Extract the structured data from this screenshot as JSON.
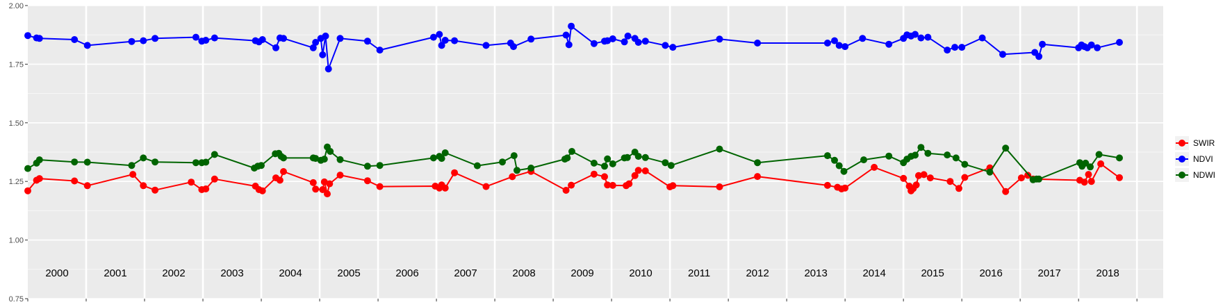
{
  "chart_data": {
    "type": "line",
    "title": "",
    "xlabel": "",
    "ylabel": "",
    "ylim": [
      0.75,
      2.0
    ],
    "xlim": [
      1999.5,
      2018.95
    ],
    "grid": true,
    "legend_position": "right",
    "y_ticks": [
      "0.75",
      "1.00",
      "1.25",
      "1.50",
      "1.75",
      "2.00"
    ],
    "year_labels": [
      "2000",
      "2001",
      "2002",
      "2003",
      "2004",
      "2005",
      "2006",
      "2007",
      "2008",
      "2009",
      "2010",
      "2011",
      "2012",
      "2013",
      "2014",
      "2015",
      "2016",
      "2017",
      "2018"
    ],
    "legend": [
      "SWIR",
      "NDVI",
      "NDWI"
    ],
    "series": [
      {
        "name": "SWIR",
        "color": "#ff0000",
        "x": [
          1999.5,
          1999.65,
          1999.7,
          2000.3,
          2000.52,
          2001.3,
          2001.48,
          2001.68,
          2002.3,
          2002.48,
          2002.55,
          2002.7,
          2003.4,
          2003.46,
          2003.52,
          2003.75,
          2003.82,
          2003.88,
          2004.39,
          2004.43,
          2004.55,
          2004.58,
          2004.63,
          2004.67,
          2004.85,
          2005.32,
          2005.53,
          2006.48,
          2006.55,
          2006.59,
          2006.65,
          2006.81,
          2007.35,
          2007.8,
          2008.12,
          2008.72,
          2008.81,
          2009.2,
          2009.38,
          2009.43,
          2009.52,
          2009.75,
          2009.8,
          2009.9,
          2009.96,
          2010.08,
          2010.5,
          2010.55,
          2011.35,
          2012.0,
          2013.2,
          2013.37,
          2013.44,
          2013.5,
          2014.0,
          2014.5,
          2014.6,
          2014.63,
          2014.67,
          2014.72,
          2014.76,
          2014.85,
          2014.96,
          2015.3,
          2015.45,
          2015.55,
          2015.98,
          2016.25,
          2016.52,
          2016.63,
          2016.72,
          2017.52,
          2017.6,
          2017.67,
          2017.72,
          2017.88,
          2018.2
        ],
        "y": [
          1.21,
          1.255,
          1.262,
          1.252,
          1.232,
          1.28,
          1.232,
          1.213,
          1.247,
          1.215,
          1.218,
          1.26,
          1.23,
          1.215,
          1.21,
          1.265,
          1.255,
          1.292,
          1.245,
          1.217,
          1.215,
          1.248,
          1.197,
          1.24,
          1.277,
          1.253,
          1.228,
          1.23,
          1.222,
          1.235,
          1.222,
          1.287,
          1.228,
          1.27,
          1.293,
          1.212,
          1.234,
          1.281,
          1.27,
          1.235,
          1.233,
          1.232,
          1.24,
          1.275,
          1.297,
          1.295,
          1.227,
          1.232,
          1.227,
          1.271,
          1.233,
          1.225,
          1.218,
          1.222,
          1.31,
          1.263,
          1.23,
          1.21,
          1.22,
          1.235,
          1.275,
          1.279,
          1.265,
          1.25,
          1.22,
          1.267,
          1.308,
          1.207,
          1.265,
          1.276,
          1.26,
          1.255,
          1.247,
          1.28,
          1.25,
          1.325,
          1.266
        ]
      },
      {
        "name": "NDVI",
        "color": "#0000ff",
        "x": [
          1999.5,
          1999.65,
          1999.7,
          2000.3,
          2000.52,
          2001.28,
          2001.48,
          2001.68,
          2002.38,
          2002.48,
          2002.55,
          2002.7,
          2003.4,
          2003.46,
          2003.52,
          2003.75,
          2003.82,
          2003.88,
          2004.39,
          2004.43,
          2004.52,
          2004.55,
          2004.6,
          2004.65,
          2004.85,
          2005.32,
          2005.53,
          2006.45,
          2006.55,
          2006.59,
          2006.65,
          2006.81,
          2007.35,
          2007.77,
          2007.82,
          2008.12,
          2008.72,
          2008.77,
          2008.81,
          2009.2,
          2009.38,
          2009.43,
          2009.52,
          2009.72,
          2009.78,
          2009.9,
          2009.96,
          2010.08,
          2010.42,
          2010.55,
          2011.35,
          2012.0,
          2013.2,
          2013.32,
          2013.4,
          2013.5,
          2013.8,
          2014.25,
          2014.5,
          2014.56,
          2014.63,
          2014.7,
          2014.8,
          2014.92,
          2015.25,
          2015.38,
          2015.5,
          2015.85,
          2016.2,
          2016.75,
          2016.82,
          2016.88,
          2017.5,
          2017.55,
          2017.6,
          2017.65,
          2017.72,
          2017.82,
          2018.2
        ],
        "y": [
          1.872,
          1.862,
          1.86,
          1.855,
          1.83,
          1.847,
          1.85,
          1.86,
          1.865,
          1.848,
          1.852,
          1.862,
          1.85,
          1.845,
          1.855,
          1.82,
          1.862,
          1.86,
          1.82,
          1.843,
          1.86,
          1.79,
          1.87,
          1.73,
          1.86,
          1.848,
          1.81,
          1.865,
          1.877,
          1.83,
          1.852,
          1.85,
          1.83,
          1.84,
          1.825,
          1.857,
          1.874,
          1.833,
          1.912,
          1.838,
          1.848,
          1.85,
          1.858,
          1.845,
          1.87,
          1.86,
          1.843,
          1.848,
          1.83,
          1.822,
          1.857,
          1.84,
          1.84,
          1.85,
          1.83,
          1.825,
          1.86,
          1.835,
          1.86,
          1.875,
          1.87,
          1.877,
          1.862,
          1.865,
          1.81,
          1.822,
          1.822,
          1.862,
          1.792,
          1.8,
          1.783,
          1.835,
          1.82,
          1.832,
          1.825,
          1.82,
          1.832,
          1.82,
          1.843
        ]
      },
      {
        "name": "NDWI",
        "color": "#006400",
        "x": [
          1999.5,
          1999.65,
          1999.7,
          2000.3,
          2000.52,
          2001.28,
          2001.48,
          2001.68,
          2002.38,
          2002.48,
          2002.55,
          2002.7,
          2003.38,
          2003.44,
          2003.5,
          2003.74,
          2003.8,
          2003.84,
          2003.88,
          2004.39,
          2004.43,
          2004.52,
          2004.58,
          2004.63,
          2004.68,
          2004.85,
          2005.32,
          2005.53,
          2006.45,
          2006.55,
          2006.59,
          2006.65,
          2007.2,
          2007.63,
          2007.83,
          2007.88,
          2008.12,
          2008.7,
          2008.74,
          2008.82,
          2009.2,
          2009.38,
          2009.43,
          2009.52,
          2009.72,
          2009.77,
          2009.9,
          2009.96,
          2010.08,
          2010.42,
          2010.52,
          2011.35,
          2012.0,
          2013.2,
          2013.32,
          2013.4,
          2013.48,
          2013.82,
          2014.25,
          2014.5,
          2014.56,
          2014.63,
          2014.7,
          2014.8,
          2014.92,
          2015.25,
          2015.4,
          2015.55,
          2015.98,
          2016.25,
          2016.72,
          2016.78,
          2016.82,
          2017.52,
          2017.56,
          2017.62,
          2017.7,
          2017.85,
          2018.2
        ],
        "y": [
          1.305,
          1.328,
          1.342,
          1.333,
          1.332,
          1.318,
          1.35,
          1.333,
          1.33,
          1.33,
          1.332,
          1.365,
          1.307,
          1.315,
          1.318,
          1.368,
          1.37,
          1.357,
          1.35,
          1.35,
          1.348,
          1.34,
          1.345,
          1.397,
          1.378,
          1.343,
          1.315,
          1.318,
          1.35,
          1.357,
          1.348,
          1.372,
          1.317,
          1.333,
          1.36,
          1.297,
          1.307,
          1.345,
          1.35,
          1.378,
          1.328,
          1.315,
          1.346,
          1.325,
          1.35,
          1.352,
          1.375,
          1.357,
          1.352,
          1.33,
          1.318,
          1.388,
          1.33,
          1.36,
          1.34,
          1.317,
          1.293,
          1.342,
          1.358,
          1.33,
          1.345,
          1.357,
          1.362,
          1.395,
          1.37,
          1.363,
          1.35,
          1.323,
          1.29,
          1.392,
          1.257,
          1.26,
          1.26,
          1.33,
          1.315,
          1.328,
          1.312,
          1.365,
          1.35
        ]
      }
    ]
  }
}
